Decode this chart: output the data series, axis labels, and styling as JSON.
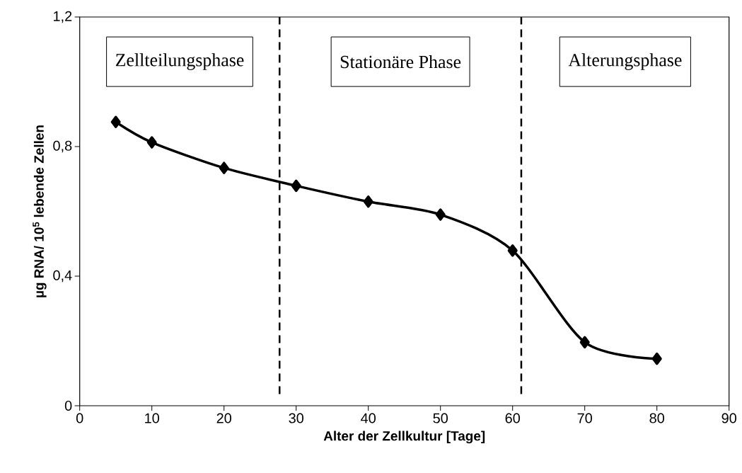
{
  "chart_data": {
    "type": "line",
    "xlabel": "Alter der Zellkultur [Tage]",
    "ylabel": "µg RNA/ 10$^{5}$ lebende Zellen",
    "x": [
      5,
      10,
      20,
      30,
      40,
      50,
      60,
      70,
      80
    ],
    "series": [
      {
        "color": "#000000",
        "values": [
          0.876,
          0.813,
          0.734,
          0.679,
          0.63,
          0.59,
          0.479,
          0.196,
          0.145
        ]
      }
    ],
    "marker": "diamond",
    "xlim": [
      0,
      90
    ],
    "ylim": [
      0,
      1.2
    ],
    "xticks": [
      0,
      10,
      20,
      30,
      40,
      50,
      60,
      70,
      80,
      90
    ],
    "yticks": [
      {
        "value": 0,
        "label": "0"
      },
      {
        "value": 0.4,
        "label": "0,4"
      },
      {
        "value": 0.8,
        "label": "0,8"
      },
      {
        "value": 1.2,
        "label": "1,2"
      }
    ],
    "ref_lines": [
      {
        "axis": "x",
        "value": 27.7,
        "color": "#000000",
        "line_style": "dashed"
      },
      {
        "axis": "x",
        "value": 61.2,
        "color": "#000000",
        "line_style": "dashed"
      }
    ],
    "annotations": [
      "Zellteilungsphase",
      "Stationäre Phase",
      "Alterungsphase"
    ]
  }
}
